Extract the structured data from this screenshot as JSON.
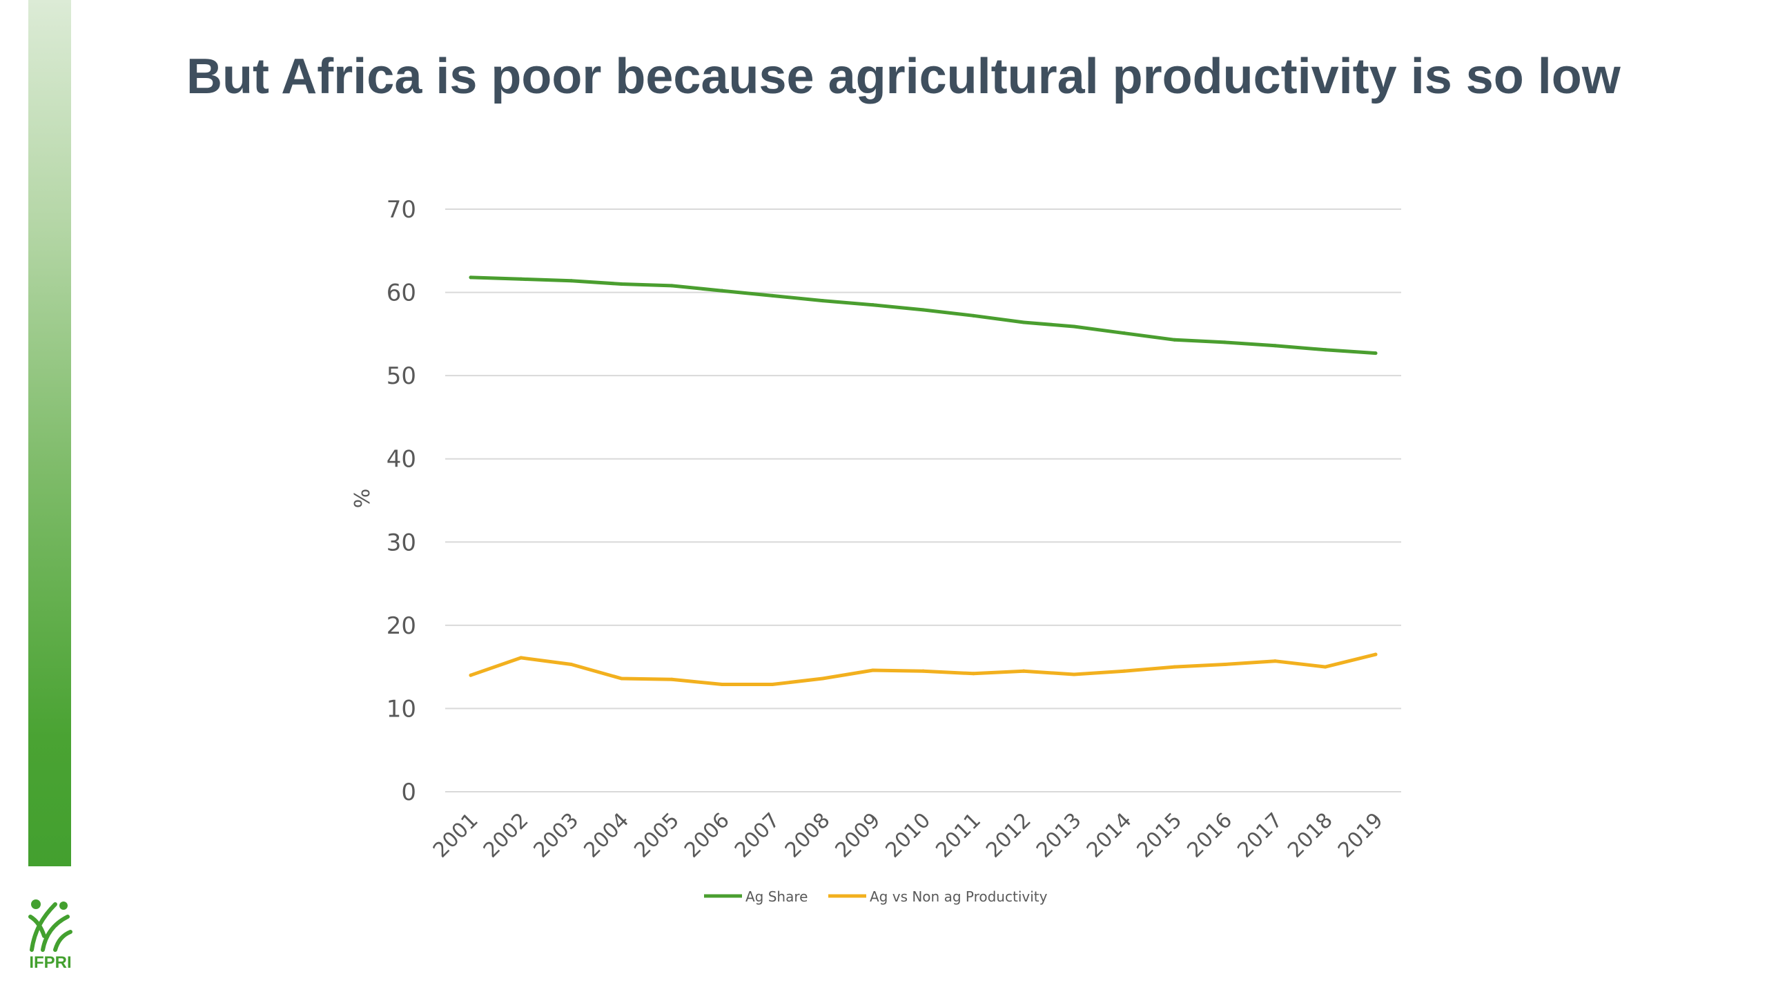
{
  "slide": {
    "title": "But Africa is poor because agricultural productivity is so low",
    "accent_color": "#43a02f",
    "logo_text": "IFPRI"
  },
  "chart_data": {
    "type": "line",
    "title": "",
    "xlabel": "",
    "ylabel": "%",
    "ylim": [
      0,
      70
    ],
    "yticks": [
      0,
      10,
      20,
      30,
      40,
      50,
      60,
      70
    ],
    "grid": true,
    "legend_position": "bottom",
    "categories": [
      "2001",
      "2002",
      "2003",
      "2004",
      "2005",
      "2006",
      "2007",
      "2008",
      "2009",
      "2010",
      "2011",
      "2012",
      "2013",
      "2014",
      "2015",
      "2016",
      "2017",
      "2018",
      "2019"
    ],
    "series": [
      {
        "name": "Ag Share",
        "color": "#4a9e2f",
        "values": [
          61.8,
          61.6,
          61.4,
          61.0,
          60.8,
          60.2,
          59.6,
          59.0,
          58.5,
          57.9,
          57.2,
          56.4,
          55.9,
          55.1,
          54.3,
          54.0,
          53.6,
          53.1,
          52.7
        ]
      },
      {
        "name": "Ag vs Non ag Productivity",
        "color": "#f2b01e",
        "values": [
          14.0,
          16.1,
          15.3,
          13.6,
          13.5,
          12.9,
          12.9,
          13.6,
          14.6,
          14.5,
          14.2,
          14.5,
          14.1,
          14.5,
          15.0,
          15.3,
          15.7,
          15.0,
          16.5
        ]
      }
    ]
  }
}
